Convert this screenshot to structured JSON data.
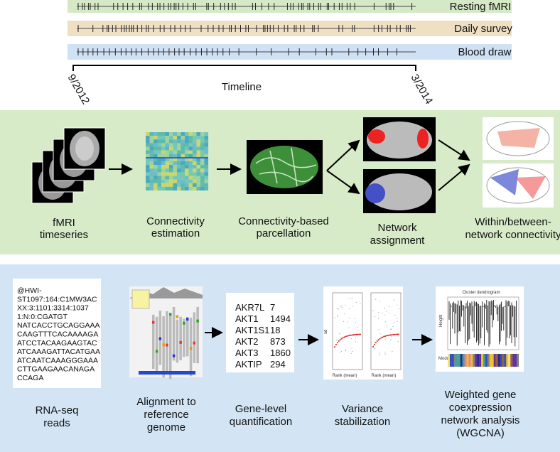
{
  "timeline": {
    "tracks": [
      {
        "label": "Resting fMRI"
      },
      {
        "label": "Daily survey"
      },
      {
        "label": "Blood draw"
      }
    ],
    "start": "9/2012",
    "end": "3/2014",
    "label": "Timeline"
  },
  "imaging_pipeline": {
    "steps": [
      {
        "label": [
          "fMRI",
          "timeseries"
        ]
      },
      {
        "label": [
          "Connectivity",
          "estimation"
        ]
      },
      {
        "label": [
          "Connectivity-based",
          "parcellation"
        ]
      },
      {
        "label": [
          "Network",
          "assignment"
        ]
      },
      {
        "label": [
          "Within/between-",
          "network connectivity"
        ]
      }
    ]
  },
  "rnaseq_pipeline": {
    "read": [
      "@HWI-",
      "ST1097:164:C1MW3AC",
      "XX:3:1101:3314:1037",
      "1:N:0:CGATGT",
      "NATCACCTGCAGGAAA",
      "CAAGTTTCACAAAAGA",
      "ATCCTACAAGAAGTAC",
      "ATCAAAGATTACATGAA",
      "ATCAATCAAAGGGAAA",
      "CTTGAAGAACANAGA",
      "CCAGA"
    ],
    "genes": [
      {
        "name": "AKR7L",
        "count": 7
      },
      {
        "name": "AKT1",
        "count": 1494
      },
      {
        "name": "AKT1S1",
        "count": 18
      },
      {
        "name": "AKT2",
        "count": 873
      },
      {
        "name": "AKT3",
        "count": 1860
      },
      {
        "name": "AKTIP",
        "count": 294
      }
    ],
    "variance_plot": {
      "y_label": "sd",
      "x_label": "Rank (mean)"
    },
    "dendrogram": {
      "title": "Cluster dendrogram",
      "y_label": "Height",
      "colors_label": "Module colors"
    },
    "steps": [
      {
        "label": [
          "RNA-seq",
          "reads"
        ]
      },
      {
        "label": [
          "Alignment to",
          "reference",
          "genome"
        ]
      },
      {
        "label": [
          "Gene-level",
          "quantification"
        ]
      },
      {
        "label": [
          "Variance",
          "stabilization"
        ]
      },
      {
        "label": [
          "Weighted gene",
          "coexpression",
          "network analysis",
          "(WGCNA)"
        ]
      }
    ]
  }
}
